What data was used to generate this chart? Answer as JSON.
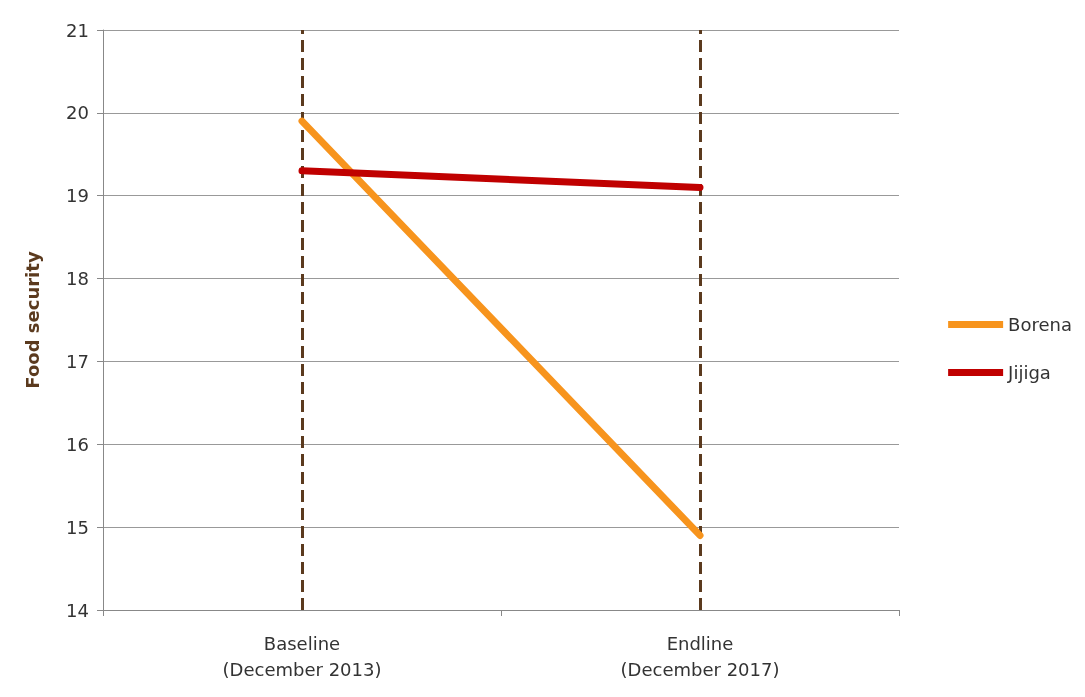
{
  "chart_data": {
    "type": "line",
    "ylabel": "Food security",
    "categories": [
      "Baseline\n(December 2013)",
      "Endline\n(December 2017)"
    ],
    "series": [
      {
        "name": "Borena",
        "color": "#f7941d",
        "values": [
          19.9,
          14.9
        ]
      },
      {
        "name": "Jijiga",
        "color": "#c00000",
        "values": [
          19.3,
          19.1
        ]
      }
    ],
    "ylim": [
      14,
      21
    ],
    "yticks": [
      14,
      15,
      16,
      17,
      18,
      19,
      20,
      21
    ],
    "grid": "y",
    "legend": "right",
    "marker": "none",
    "line_style": "solid",
    "ref_lines": [
      {
        "axis": "x",
        "value": "Baseline\n(December 2013)",
        "color": "#5b3a1e",
        "line_style": "dashed"
      },
      {
        "axis": "x",
        "value": "Endline\n(December 2017)",
        "color": "#5b3a1e",
        "line_style": "dashed"
      }
    ]
  }
}
